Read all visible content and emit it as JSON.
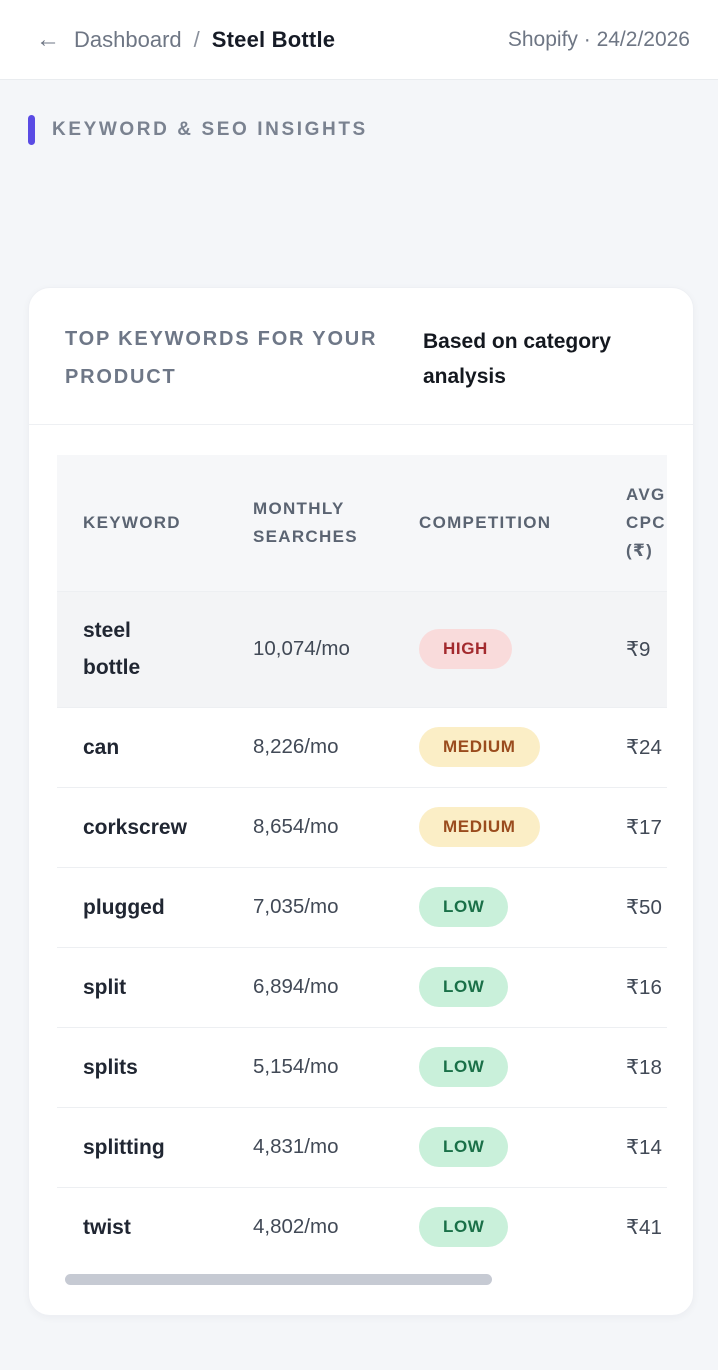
{
  "header": {
    "back_arrow": "←",
    "breadcrumb_root": "Dashboard",
    "breadcrumb_separator": "/",
    "breadcrumb_current": "Steel Bottle",
    "meta": "Shopify · 24/2/2026"
  },
  "section": {
    "title": "KEYWORD & SEO INSIGHTS"
  },
  "card": {
    "title": "TOP KEYWORDS FOR YOUR PRODUCT",
    "subtitle": "Based on category analysis",
    "table": {
      "columns": [
        "KEYWORD",
        "MONTHLY SEARCHES",
        "COMPETITION",
        "AVG CPC (₹)"
      ],
      "rows": [
        {
          "keyword": "steel bottle",
          "monthly_searches": "10,074/mo",
          "competition": "HIGH",
          "avg_cpc": "₹9",
          "highlighted": true
        },
        {
          "keyword": "can",
          "monthly_searches": "8,226/mo",
          "competition": "MEDIUM",
          "avg_cpc": "₹24",
          "highlighted": false
        },
        {
          "keyword": "corkscrew",
          "monthly_searches": "8,654/mo",
          "competition": "MEDIUM",
          "avg_cpc": "₹17",
          "highlighted": false
        },
        {
          "keyword": "plugged",
          "monthly_searches": "7,035/mo",
          "competition": "LOW",
          "avg_cpc": "₹50",
          "highlighted": false
        },
        {
          "keyword": "split",
          "monthly_searches": "6,894/mo",
          "competition": "LOW",
          "avg_cpc": "₹16",
          "highlighted": false
        },
        {
          "keyword": "splits",
          "monthly_searches": "5,154/mo",
          "competition": "LOW",
          "avg_cpc": "₹18",
          "highlighted": false
        },
        {
          "keyword": "splitting",
          "monthly_searches": "4,831/mo",
          "competition": "LOW",
          "avg_cpc": "₹14",
          "highlighted": false
        },
        {
          "keyword": "twist",
          "monthly_searches": "4,802/mo",
          "competition": "LOW",
          "avg_cpc": "₹41",
          "highlighted": false
        }
      ]
    }
  },
  "colors": {
    "accent": "#5a4be4",
    "page_background": "#f4f6f9",
    "badge_high_bg": "#f9dbdb",
    "badge_high_text": "#a32a2e",
    "badge_medium_bg": "#fbeec6",
    "badge_medium_text": "#9a4c1e",
    "badge_low_bg": "#c9f0da",
    "badge_low_text": "#1a7048",
    "scrollbar_thumb": "#c6cad3"
  }
}
